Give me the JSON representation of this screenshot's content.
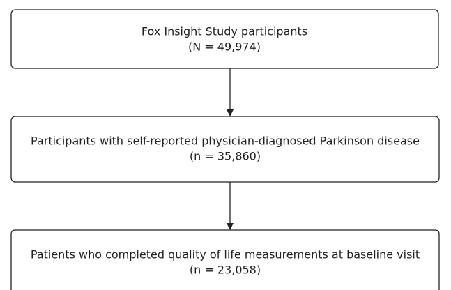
{
  "nodes": [
    {
      "label": "Fox Insight Study participants",
      "count": "(N = 49,974)"
    },
    {
      "label": "Participants with self-reported physician-diagnosed Parkinson disease",
      "count": "(n = 35,860)"
    },
    {
      "label": "Patients who completed quality of life measurements at baseline visit",
      "count": "(n = 23,058)"
    }
  ]
}
